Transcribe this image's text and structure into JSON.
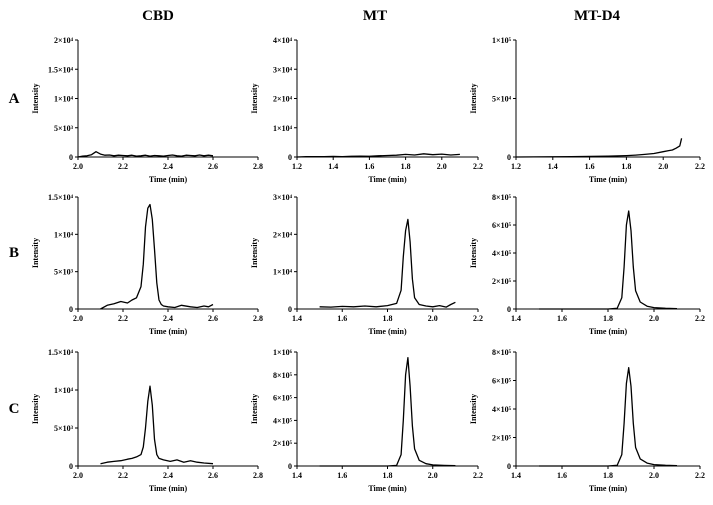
{
  "columns": [
    "CBD",
    "MT",
    "MT-D4"
  ],
  "rows": [
    "A",
    "B",
    "C"
  ],
  "chart_data": [
    {
      "panel": "A-CBD",
      "type": "line",
      "xlabel": "Time (min)",
      "ylabel": "Intensity",
      "xlim": [
        2.0,
        2.8
      ],
      "ylim": [
        0,
        20000
      ],
      "xticks": [
        "2.0",
        "2.2",
        "2.4",
        "2.6",
        "2.8"
      ],
      "yticks": [
        "0",
        "5×10³",
        "1×10⁴",
        "1.5×10⁴",
        "2×10⁴"
      ],
      "x": [
        2.0,
        2.02,
        2.04,
        2.06,
        2.08,
        2.1,
        2.12,
        2.14,
        2.16,
        2.18,
        2.2,
        2.22,
        2.24,
        2.26,
        2.28,
        2.3,
        2.32,
        2.34,
        2.36,
        2.38,
        2.4,
        2.42,
        2.44,
        2.46,
        2.48,
        2.5,
        2.52,
        2.54,
        2.56,
        2.58,
        2.6
      ],
      "y": [
        0,
        150,
        200,
        400,
        900,
        500,
        300,
        350,
        200,
        300,
        250,
        200,
        300,
        150,
        200,
        300,
        150,
        250,
        200,
        150,
        250,
        350,
        200,
        150,
        300,
        250,
        200,
        350,
        200,
        300,
        200
      ]
    },
    {
      "panel": "A-MT",
      "type": "line",
      "xlabel": "Time (min)",
      "ylabel": "Intensity",
      "xlim": [
        1.2,
        2.2
      ],
      "ylim": [
        0,
        40000
      ],
      "xticks": [
        "1.2",
        "1.4",
        "1.6",
        "1.8",
        "2.0",
        "2.2"
      ],
      "yticks": [
        "0",
        "1×10⁴",
        "2×10⁴",
        "3×10⁴",
        "4×10⁴"
      ],
      "x": [
        1.2,
        1.25,
        1.3,
        1.35,
        1.4,
        1.45,
        1.5,
        1.55,
        1.6,
        1.65,
        1.7,
        1.75,
        1.8,
        1.85,
        1.9,
        1.95,
        2.0,
        2.05,
        2.1
      ],
      "y": [
        0,
        100,
        150,
        100,
        200,
        150,
        250,
        300,
        250,
        400,
        500,
        600,
        900,
        700,
        1100,
        800,
        1000,
        700,
        900
      ]
    },
    {
      "panel": "A-MT-D4",
      "type": "line",
      "xlabel": "Time (min)",
      "ylabel": "Intensity",
      "xlim": [
        1.2,
        2.2
      ],
      "ylim": [
        0,
        100000
      ],
      "xticks": [
        "1.2",
        "1.4",
        "1.6",
        "1.8",
        "2.0",
        "2.2"
      ],
      "yticks": [
        "0",
        "5×10⁴",
        "1×10⁵"
      ],
      "x": [
        1.2,
        1.3,
        1.4,
        1.5,
        1.6,
        1.7,
        1.75,
        1.8,
        1.85,
        1.9,
        1.95,
        2.0,
        2.03,
        2.05,
        2.07,
        2.09,
        2.1
      ],
      "y": [
        0,
        100,
        200,
        300,
        500,
        700,
        900,
        1200,
        1600,
        2200,
        3000,
        4500,
        5500,
        6000,
        7500,
        9500,
        16000
      ]
    },
    {
      "panel": "B-CBD",
      "type": "line",
      "xlabel": "Time (min)",
      "ylabel": "Intensity",
      "xlim": [
        2.0,
        2.8
      ],
      "ylim": [
        0,
        15000
      ],
      "xticks": [
        "2.0",
        "2.2",
        "2.4",
        "2.6",
        "2.8"
      ],
      "yticks": [
        "0",
        "5×10³",
        "1×10⁴",
        "1.5×10⁴"
      ],
      "x": [
        2.1,
        2.13,
        2.16,
        2.19,
        2.22,
        2.24,
        2.26,
        2.28,
        2.29,
        2.3,
        2.31,
        2.32,
        2.33,
        2.34,
        2.35,
        2.36,
        2.37,
        2.38,
        2.4,
        2.43,
        2.46,
        2.5,
        2.53,
        2.56,
        2.58,
        2.6
      ],
      "y": [
        0,
        500,
        700,
        1000,
        800,
        1200,
        1500,
        3000,
        6000,
        11000,
        13500,
        14000,
        12000,
        8000,
        3500,
        1200,
        600,
        400,
        300,
        200,
        500,
        300,
        200,
        400,
        300,
        600
      ]
    },
    {
      "panel": "B-MT",
      "type": "line",
      "xlabel": "Time (min)",
      "ylabel": "Intensity",
      "xlim": [
        1.4,
        2.2
      ],
      "ylim": [
        0,
        30000
      ],
      "xticks": [
        "1.4",
        "1.6",
        "1.8",
        "2.0",
        "2.2"
      ],
      "yticks": [
        "0",
        "1×10⁴",
        "2×10⁴",
        "3×10⁴"
      ],
      "x": [
        1.5,
        1.55,
        1.6,
        1.65,
        1.7,
        1.75,
        1.8,
        1.84,
        1.86,
        1.87,
        1.88,
        1.89,
        1.9,
        1.91,
        1.92,
        1.94,
        1.97,
        2.0,
        2.03,
        2.06,
        2.08,
        2.1
      ],
      "y": [
        600,
        500,
        700,
        600,
        800,
        600,
        900,
        1500,
        5000,
        14000,
        21000,
        24000,
        18000,
        8000,
        3000,
        1200,
        800,
        600,
        900,
        500,
        1200,
        1800
      ]
    },
    {
      "panel": "B-MT-D4",
      "type": "line",
      "xlabel": "Time (min)",
      "ylabel": "Intensity",
      "xlim": [
        1.4,
        2.2
      ],
      "ylim": [
        0,
        800000
      ],
      "xticks": [
        "1.4",
        "1.6",
        "1.8",
        "2.0",
        "2.2"
      ],
      "yticks": [
        "0",
        "2×10⁵",
        "4×10⁵",
        "6×10⁵",
        "8×10⁵"
      ],
      "x": [
        1.5,
        1.6,
        1.7,
        1.8,
        1.84,
        1.86,
        1.87,
        1.88,
        1.89,
        1.9,
        1.91,
        1.92,
        1.94,
        1.97,
        2.0,
        2.05,
        2.1
      ],
      "y": [
        0,
        0,
        0,
        0,
        5000,
        80000,
        300000,
        600000,
        700000,
        560000,
        300000,
        130000,
        50000,
        20000,
        10000,
        5000,
        3000
      ]
    },
    {
      "panel": "C-CBD",
      "type": "line",
      "xlabel": "Time (min)",
      "ylabel": "Intensity",
      "xlim": [
        2.0,
        2.8
      ],
      "ylim": [
        0,
        15000
      ],
      "xticks": [
        "2.0",
        "2.2",
        "2.4",
        "2.6",
        "2.8"
      ],
      "yticks": [
        "0",
        "5×10³",
        "1×10⁴",
        "1.5×10⁴"
      ],
      "x": [
        2.1,
        2.13,
        2.16,
        2.19,
        2.22,
        2.24,
        2.26,
        2.28,
        2.29,
        2.3,
        2.31,
        2.32,
        2.33,
        2.34,
        2.35,
        2.36,
        2.38,
        2.41,
        2.44,
        2.47,
        2.5,
        2.53,
        2.56,
        2.6
      ],
      "y": [
        300,
        500,
        600,
        700,
        900,
        1000,
        1200,
        1500,
        2500,
        5000,
        8500,
        10500,
        8000,
        3500,
        1500,
        1000,
        800,
        600,
        800,
        500,
        700,
        500,
        400,
        300
      ]
    },
    {
      "panel": "C-MT",
      "type": "line",
      "xlabel": "Time (min)",
      "ylabel": "Intensity",
      "xlim": [
        1.4,
        2.2
      ],
      "ylim": [
        0,
        1000000
      ],
      "xticks": [
        "1.4",
        "1.6",
        "1.8",
        "2.0",
        "2.2"
      ],
      "yticks": [
        "0",
        "2×10⁵",
        "4×10⁵",
        "6×10⁵",
        "8×10⁵",
        "1×10⁶"
      ],
      "x": [
        1.5,
        1.6,
        1.7,
        1.8,
        1.84,
        1.86,
        1.87,
        1.88,
        1.89,
        1.9,
        1.91,
        1.92,
        1.94,
        1.97,
        2.0,
        2.05,
        2.1
      ],
      "y": [
        0,
        0,
        0,
        0,
        5000,
        100000,
        400000,
        800000,
        950000,
        700000,
        350000,
        150000,
        50000,
        20000,
        10000,
        5000,
        3000
      ]
    },
    {
      "panel": "C-MT-D4",
      "type": "line",
      "xlabel": "Time (min)",
      "ylabel": "Intensity",
      "xlim": [
        1.4,
        2.2
      ],
      "ylim": [
        0,
        800000
      ],
      "xticks": [
        "1.4",
        "1.6",
        "1.8",
        "2.0",
        "2.2"
      ],
      "yticks": [
        "0",
        "2×10⁵",
        "4×10⁵",
        "6×10⁵",
        "8×10⁵"
      ],
      "x": [
        1.5,
        1.6,
        1.7,
        1.8,
        1.84,
        1.86,
        1.87,
        1.88,
        1.89,
        1.9,
        1.91,
        1.92,
        1.94,
        1.97,
        2.0,
        2.05,
        2.1
      ],
      "y": [
        0,
        0,
        0,
        0,
        5000,
        80000,
        300000,
        580000,
        690000,
        560000,
        300000,
        130000,
        50000,
        20000,
        10000,
        5000,
        3000
      ]
    }
  ]
}
